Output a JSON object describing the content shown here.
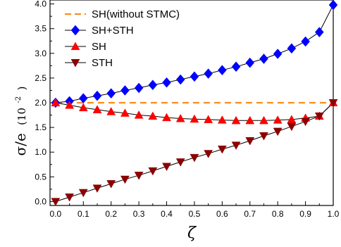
{
  "chart_data": {
    "type": "line",
    "title": "",
    "xlabel": "ζ",
    "ylabel_main": "σ/e",
    "ylabel_unit_prefix": "(10",
    "ylabel_unit_exp": "-2",
    "ylabel_unit_suffix": ")",
    "xlim": [
      -0.02,
      1.0
    ],
    "ylim": [
      -0.08,
      4.08
    ],
    "xticks": [
      "0.0",
      "0.1",
      "0.2",
      "0.3",
      "0.4",
      "0.5",
      "0.6",
      "0.7",
      "0.8",
      "0.9",
      "1.0"
    ],
    "yticks": [
      "0.0",
      "0.5",
      "1.0",
      "1.5",
      "2.0",
      "2.5",
      "3.0",
      "3.5",
      "4.0"
    ],
    "grid": false,
    "legend_position": "top-left",
    "x": [
      0.0,
      0.05,
      0.1,
      0.15,
      0.2,
      0.25,
      0.3,
      0.35,
      0.4,
      0.45,
      0.5,
      0.55,
      0.6,
      0.65,
      0.7,
      0.75,
      0.8,
      0.85,
      0.9,
      0.95,
      1.0
    ],
    "series": [
      {
        "name": "SH(without STMC)",
        "style": "dashed",
        "marker": "none",
        "color": "#ff8c1a",
        "x": [
          0.0,
          1.0
        ],
        "values": [
          2.0,
          2.0
        ]
      },
      {
        "name": "SH+STH",
        "style": "solid",
        "marker": "diamond",
        "color": "#0000ff",
        "values": [
          2.0,
          2.03,
          2.09,
          2.14,
          2.19,
          2.25,
          2.3,
          2.36,
          2.41,
          2.47,
          2.53,
          2.59,
          2.66,
          2.73,
          2.81,
          2.89,
          2.99,
          3.1,
          3.24,
          3.43,
          3.98
        ]
      },
      {
        "name": "SH",
        "style": "solid",
        "marker": "triangle-up",
        "color": "#ff0000",
        "values": [
          2.0,
          1.95,
          1.9,
          1.86,
          1.82,
          1.79,
          1.75,
          1.73,
          1.7,
          1.68,
          1.67,
          1.66,
          1.65,
          1.64,
          1.64,
          1.64,
          1.65,
          1.66,
          1.69,
          1.73,
          2.0
        ]
      },
      {
        "name": "STH",
        "style": "solid",
        "marker": "triangle-down",
        "color": "#8b0000",
        "values": [
          0.0,
          0.09,
          0.18,
          0.27,
          0.36,
          0.45,
          0.53,
          0.62,
          0.71,
          0.8,
          0.89,
          0.97,
          1.06,
          1.14,
          1.23,
          1.33,
          1.42,
          1.52,
          1.62,
          1.73,
          2.0
        ]
      }
    ]
  }
}
